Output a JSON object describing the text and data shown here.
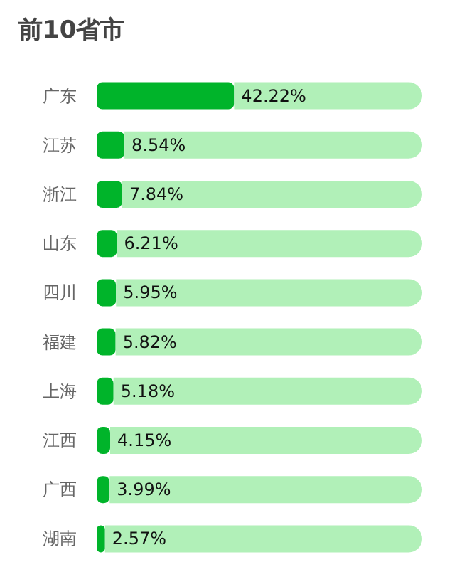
{
  "chart_data": {
    "type": "bar",
    "orientation": "horizontal",
    "title": "前10省市",
    "categories": [
      "广东",
      "江苏",
      "浙江",
      "山东",
      "四川",
      "福建",
      "上海",
      "江西",
      "广西",
      "湖南"
    ],
    "series": [
      {
        "color": "#00b42a",
        "values": [
          42.22,
          8.54,
          7.84,
          6.21,
          5.95,
          5.82,
          5.18,
          4.15,
          3.99,
          2.57
        ],
        "value_labels": [
          "42.22%",
          "8.54%",
          "7.84%",
          "6.21%",
          "5.95%",
          "5.82%",
          "5.18%",
          "4.15%",
          "3.99%",
          "2.57%"
        ]
      },
      {
        "color": "#b1f0b8",
        "values": [
          57.78,
          91.46,
          92.16,
          93.79,
          94.05,
          94.18,
          94.82,
          95.85,
          96.01,
          97.43
        ]
      }
    ],
    "stacked": true,
    "xlim": [
      0,
      100
    ],
    "tick_labels": "y",
    "grid": false
  }
}
